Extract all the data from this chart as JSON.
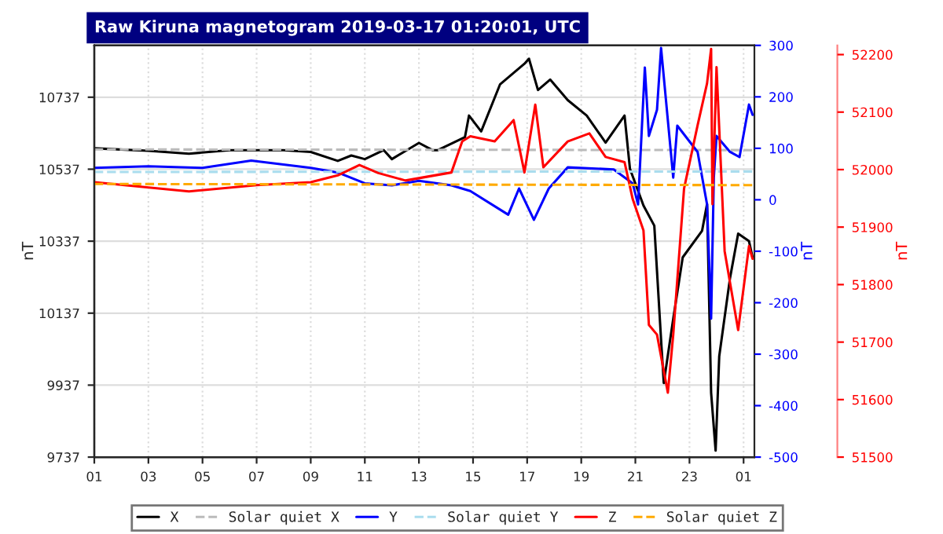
{
  "chart_data": {
    "type": "line",
    "title": "Raw Kiruna magnetogram 2019-03-17 01:20:01, UTC",
    "ylabel": "nT",
    "y2label": "nT",
    "y3label": "nT",
    "xlim": [
      "2019-03-16T01:00",
      "2019-03-17T01:24"
    ],
    "xticks": [
      {
        "value": "2019-03-16T01:00",
        "label": "01"
      },
      {
        "value": "2019-03-16T03:00",
        "label": "03"
      },
      {
        "value": "2019-03-16T05:00",
        "label": "05"
      },
      {
        "value": "2019-03-16T07:00",
        "label": "07"
      },
      {
        "value": "2019-03-16T09:00",
        "label": "09"
      },
      {
        "value": "2019-03-16T11:00",
        "label": "11"
      },
      {
        "value": "2019-03-16T13:00",
        "label": "13"
      },
      {
        "value": "2019-03-16T15:00",
        "label": "15"
      },
      {
        "value": "2019-03-16T17:00",
        "label": "17"
      },
      {
        "value": "2019-03-16T19:00",
        "label": "19"
      },
      {
        "value": "2019-03-16T21:00",
        "label": "21"
      },
      {
        "value": "2019-03-16T23:00",
        "label": "23"
      },
      {
        "value": "2019-03-17T01:00",
        "label": "01"
      }
    ],
    "ylim": [
      9737,
      10881
    ],
    "yticks": [
      9737,
      9937,
      10137,
      10337,
      10537,
      10737
    ],
    "y2lim": [
      -500,
      300
    ],
    "y2ticks": [
      -500,
      -400,
      -300,
      -200,
      -100,
      0,
      100,
      200,
      300
    ],
    "y3lim": [
      51500,
      52216
    ],
    "y3ticks": [
      51500,
      51600,
      51700,
      51800,
      51900,
      52000,
      52100,
      52200
    ],
    "grid": true,
    "legend": "bottom",
    "series": [
      {
        "name": "X",
        "color": "#000000",
        "line_style": "solid",
        "x": [
          "2019-03-16T01:00",
          "2019-03-16T03:00",
          "2019-03-16T04:30",
          "2019-03-16T06:00",
          "2019-03-16T08:00",
          "2019-03-16T09:00",
          "2019-03-16T10:00",
          "2019-03-16T10:30",
          "2019-03-16T11:00",
          "2019-03-16T11:42",
          "2019-03-16T12:00",
          "2019-03-16T13:00",
          "2019-03-16T13:30",
          "2019-03-16T13:42",
          "2019-03-16T14:42",
          "2019-03-16T14:51",
          "2019-03-16T15:18",
          "2019-03-16T16:00",
          "2019-03-16T16:54",
          "2019-03-16T17:04",
          "2019-03-16T17:24",
          "2019-03-16T17:51",
          "2019-03-16T18:30",
          "2019-03-16T19:12",
          "2019-03-16T19:54",
          "2019-03-16T20:36",
          "2019-03-16T20:48",
          "2019-03-16T21:18",
          "2019-03-16T21:42",
          "2019-03-16T21:58",
          "2019-03-16T22:03",
          "2019-03-16T22:24",
          "2019-03-16T22:45",
          "2019-03-16T23:28",
          "2019-03-16T23:39",
          "2019-03-16T23:48",
          "2019-03-16T23:58",
          "2019-03-17T00:06",
          "2019-03-17T00:30",
          "2019-03-17T00:48",
          "2019-03-17T01:12",
          "2019-03-17T01:20"
        ],
        "values": [
          10595,
          10588,
          10580,
          10590,
          10590,
          10585,
          10560,
          10575,
          10565,
          10590,
          10565,
          10610,
          10590,
          10590,
          10626,
          10686,
          10642,
          10773,
          10830,
          10844,
          10757,
          10786,
          10729,
          10686,
          10611,
          10686,
          10538,
          10436,
          10380,
          10043,
          9943,
          10121,
          10292,
          10366,
          10440,
          9916,
          9755,
          10017,
          10235,
          10358,
          10337,
          10292
        ]
      },
      {
        "name": "Solar quiet X",
        "color": "#bbbbbb",
        "line_style": "dashed",
        "x": [
          "2019-03-16T01:00",
          "2019-03-17T01:20"
        ],
        "values": [
          10592,
          10590
        ]
      },
      {
        "name": "Y",
        "color": "#0000ff",
        "line_style": "solid",
        "axis": "y2",
        "x": [
          "2019-03-16T01:00",
          "2019-03-16T03:00",
          "2019-03-16T05:00",
          "2019-03-16T06:48",
          "2019-03-16T09:00",
          "2019-03-16T10:00",
          "2019-03-16T11:00",
          "2019-03-16T12:00",
          "2019-03-16T13:00",
          "2019-03-16T14:12",
          "2019-03-16T14:54",
          "2019-03-16T16:18",
          "2019-03-16T16:42",
          "2019-03-16T17:15",
          "2019-03-16T17:48",
          "2019-03-16T18:30",
          "2019-03-16T20:12",
          "2019-03-16T20:54",
          "2019-03-16T21:06",
          "2019-03-16T21:21",
          "2019-03-16T21:30",
          "2019-03-16T21:48",
          "2019-03-16T21:57",
          "2019-03-16T22:24",
          "2019-03-16T22:33",
          "2019-03-16T23:18",
          "2019-03-16T23:39",
          "2019-03-16T23:48",
          "2019-03-16T23:54",
          "2019-03-17T00:00",
          "2019-03-17T00:30",
          "2019-03-17T00:51",
          "2019-03-17T01:12",
          "2019-03-17T01:20"
        ],
        "values": [
          62,
          65,
          62,
          76,
          62,
          53,
          32,
          28,
          37,
          28,
          17,
          -29,
          22,
          -39,
          22,
          63,
          59,
          32,
          -9,
          257,
          124,
          175,
          295,
          43,
          144,
          93,
          -9,
          -231,
          43,
          124,
          93,
          83,
          185,
          165
        ]
      },
      {
        "name": "Solar quiet Y",
        "color": "#aaddee",
        "line_style": "dashed",
        "axis": "y2",
        "x": [
          "2019-03-16T01:00",
          "2019-03-17T01:20"
        ],
        "values": [
          54,
          55
        ]
      },
      {
        "name": "Z",
        "color": "#ff0000",
        "line_style": "solid",
        "axis": "y3",
        "x": [
          "2019-03-16T01:00",
          "2019-03-16T04:30",
          "2019-03-16T07:00",
          "2019-03-16T09:00",
          "2019-03-16T10:00",
          "2019-03-16T10:48",
          "2019-03-16T11:30",
          "2019-03-16T12:30",
          "2019-03-16T14:12",
          "2019-03-16T14:36",
          "2019-03-16T14:54",
          "2019-03-16T15:48",
          "2019-03-16T16:30",
          "2019-03-16T16:54",
          "2019-03-16T17:18",
          "2019-03-16T17:36",
          "2019-03-16T18:30",
          "2019-03-16T19:18",
          "2019-03-16T19:54",
          "2019-03-16T20:36",
          "2019-03-16T20:54",
          "2019-03-16T21:18",
          "2019-03-16T21:30",
          "2019-03-16T21:48",
          "2019-03-16T22:12",
          "2019-03-16T22:24",
          "2019-03-16T22:48",
          "2019-03-16T23:18",
          "2019-03-16T23:39",
          "2019-03-16T23:48",
          "2019-03-16T23:51",
          "2019-03-17T00:00",
          "2019-03-17T00:18",
          "2019-03-17T00:48",
          "2019-03-17T01:12",
          "2019-03-17T01:20"
        ],
        "values": [
          51978,
          51962,
          51973,
          51978,
          51990,
          52008,
          51994,
          51981,
          51995,
          52049,
          52058,
          52049,
          52086,
          51995,
          52113,
          52004,
          52049,
          52063,
          52022,
          52013,
          51949,
          51894,
          51730,
          51713,
          51612,
          51713,
          51967,
          52077,
          52150,
          52210,
          51940,
          52178,
          51858,
          51721,
          51867,
          51845
        ]
      },
      {
        "name": "Solar quiet Z",
        "color": "#ffaa00",
        "line_style": "dashed",
        "axis": "y3",
        "x": [
          "2019-03-16T01:00",
          "2019-03-17T01:20"
        ],
        "values": [
          51975,
          51973
        ]
      }
    ]
  }
}
